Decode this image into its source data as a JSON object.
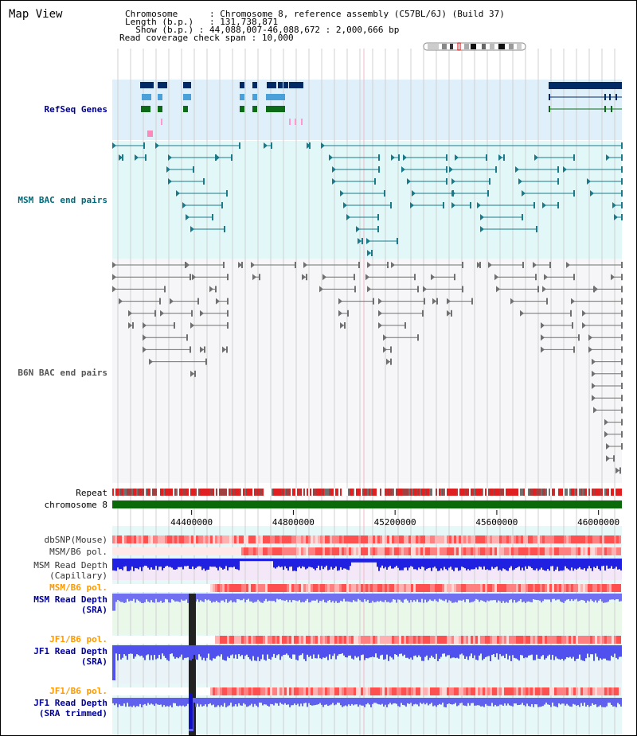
{
  "view_title": "Map View",
  "info": {
    "chromosome_label": "Chromosome",
    "chromosome_value": "Chromosome 8, reference assembly (C57BL/6J) (Build 37)",
    "length_label": "Length (b.p.)",
    "length_value": "131,738,871",
    "show_label": "Show (b.p.)",
    "show_value": "44,088,007-46,088,672 : 2,000,666 bp",
    "coverage_label": "Read coverage check span",
    "coverage_value": "10,000"
  },
  "tracks": {
    "refseq": "RefSeq Genes",
    "msm_bac": "MSM BAC end pairs",
    "b6n_bac": "B6N BAC end pairs",
    "repeat": "Repeat",
    "chromosome": "chromosome 8",
    "dbsnp": "dbSNP(Mouse)",
    "msm_b6_pol_1": "MSM/B6 pol.",
    "msm_depth_cap_1": "MSM Read Depth",
    "msm_depth_cap_2": "(Capillary)",
    "msm_b6_pol_2": "MSM/B6 pol.",
    "msm_depth_sra_1": "MSM Read Depth",
    "msm_depth_sra_2": "(SRA)",
    "jf1_b6_pol_1": "JF1/B6 pol.",
    "jf1_depth_sra_1": "JF1 Read Depth",
    "jf1_depth_sra_2": "(SRA)",
    "jf1_b6_pol_2": "JF1/B6 pol.",
    "jf1_depth_trim_1": "JF1 Read Depth",
    "jf1_depth_trim_2": "(SRA trimmed)"
  },
  "axis": {
    "ticks": [
      {
        "value": 44400000,
        "label": "44400000"
      },
      {
        "value": 44800000,
        "label": "44800000"
      },
      {
        "value": 45200000,
        "label": "45200000"
      },
      {
        "value": 45600000,
        "label": "45600000"
      },
      {
        "value": 46000000,
        "label": "46000000"
      }
    ],
    "range": [
      44088007,
      46088672
    ]
  },
  "colors": {
    "refseq_band": "#dff0fb",
    "msm_band": "#e2f7f7",
    "gene_dark": "#002a66",
    "gene_light": "#4aa0d8",
    "gene_green": "#0d6b18",
    "bac_teal": "#1a7a8a",
    "bac_gray": "#707070",
    "chrom_green": "#0a6a0a",
    "depth_blue": "#2020e0",
    "depth_light": "#7070f0",
    "label_blue": "#000099",
    "label_orange": "#ff9900"
  }
}
